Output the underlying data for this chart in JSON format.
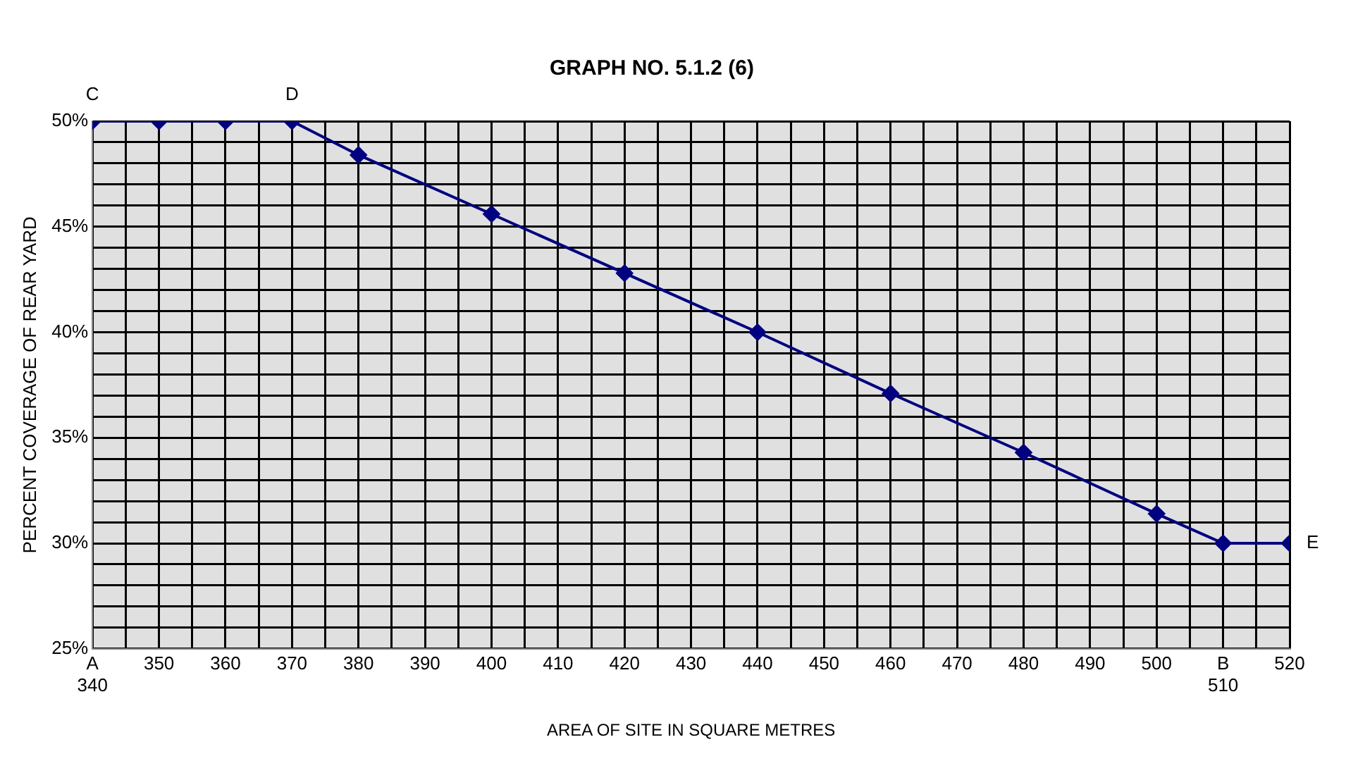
{
  "chart_data": {
    "type": "line",
    "title": "GRAPH NO. 5.1.2 (6)",
    "xlabel": "AREA OF SITE IN SQUARE METRES",
    "ylabel": "PERCENT COVERAGE OF REAR YARD",
    "x": [
      340,
      350,
      360,
      370,
      380,
      400,
      420,
      440,
      460,
      480,
      500,
      510,
      520
    ],
    "series": [
      {
        "color": "#000080",
        "values": [
          50,
          50,
          50,
          50,
          48.4,
          45.6,
          42.8,
          40,
          37.1,
          34.3,
          31.4,
          30,
          30
        ]
      }
    ],
    "xlim": [
      340,
      520
    ],
    "xticks": [
      {
        "value": 340,
        "label": "A\n340"
      },
      {
        "value": 345,
        "label": null
      },
      350,
      {
        "value": 355,
        "label": null
      },
      360,
      {
        "value": 365,
        "label": null
      },
      370,
      {
        "value": 375,
        "label": null
      },
      380,
      {
        "value": 385,
        "label": null
      },
      390,
      {
        "value": 395,
        "label": null
      },
      400,
      {
        "value": 405,
        "label": null
      },
      410,
      {
        "value": 415,
        "label": null
      },
      420,
      {
        "value": 425,
        "label": null
      },
      430,
      {
        "value": 435,
        "label": null
      },
      440,
      {
        "value": 445,
        "label": null
      },
      450,
      {
        "value": 455,
        "label": null
      },
      460,
      {
        "value": 465,
        "label": null
      },
      470,
      {
        "value": 475,
        "label": null
      },
      480,
      {
        "value": 485,
        "label": null
      },
      490,
      {
        "value": 495,
        "label": null
      },
      500,
      {
        "value": 505,
        "label": null
      },
      {
        "value": 510,
        "label": "B\n510"
      },
      {
        "value": 515,
        "label": null
      },
      520
    ],
    "ylim": [
      25,
      50
    ],
    "yticks": [
      {
        "value": 25,
        "label": "25%"
      },
      {
        "value": 26,
        "label": null
      },
      {
        "value": 27,
        "label": null
      },
      {
        "value": 28,
        "label": null
      },
      {
        "value": 29,
        "label": null
      },
      {
        "value": 30,
        "label": "30%"
      },
      {
        "value": 31,
        "label": null
      },
      {
        "value": 32,
        "label": null
      },
      {
        "value": 33,
        "label": null
      },
      {
        "value": 34,
        "label": null
      },
      {
        "value": 35,
        "label": "35%"
      },
      {
        "value": 36,
        "label": null
      },
      {
        "value": 37,
        "label": null
      },
      {
        "value": 38,
        "label": null
      },
      {
        "value": 39,
        "label": null
      },
      {
        "value": 40,
        "label": "40%"
      },
      {
        "value": 41,
        "label": null
      },
      {
        "value": 42,
        "label": null
      },
      {
        "value": 43,
        "label": null
      },
      {
        "value": 44,
        "label": null
      },
      {
        "value": 45,
        "label": "45%"
      },
      {
        "value": 46,
        "label": null
      },
      {
        "value": 47,
        "label": null
      },
      {
        "value": 48,
        "label": null
      },
      {
        "value": 49,
        "label": null
      },
      {
        "value": 50,
        "label": "50%"
      }
    ],
    "annotations": [
      {
        "text": "C",
        "x": 340,
        "y": 50
      },
      {
        "text": "D",
        "x": 370,
        "y": 50
      },
      {
        "text": "E",
        "x": 520,
        "y": 30
      }
    ],
    "grid": true,
    "marker": "diamond",
    "line_style": "solid",
    "legend": false
  }
}
